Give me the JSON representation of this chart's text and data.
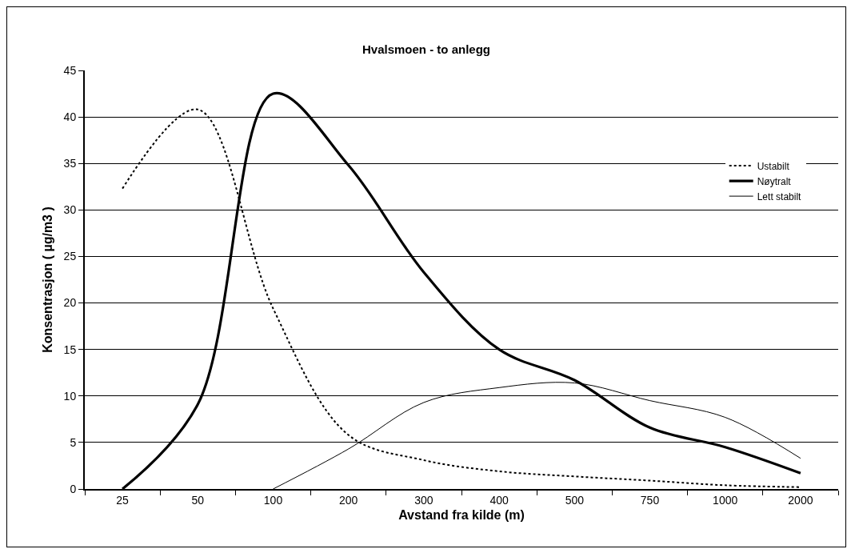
{
  "chart_data": {
    "type": "line",
    "title": "Hvalsmoen - to anlegg",
    "xlabel": "Avstand fra kilde (m)",
    "ylabel": "Konsentrasjon ( µg/m3 )",
    "categories": [
      "25",
      "50",
      "100",
      "200",
      "300",
      "400",
      "500",
      "750",
      "1000",
      "2000"
    ],
    "series": [
      {
        "name": "Ustabilt",
        "color": "#000000",
        "line_style": "dotted",
        "values": [
          32.3,
          40.8,
          19.4,
          5.8,
          3.1,
          1.9,
          1.35,
          0.9,
          0.4,
          0.2
        ]
      },
      {
        "name": "Nøytralt",
        "color": "#000000",
        "line_style": "solid",
        "values": [
          0,
          9.1,
          42.5,
          34.8,
          23.3,
          15.0,
          11.7,
          6.6,
          4.5,
          1.7
        ]
      },
      {
        "name": "Lett stabilt",
        "color": "#000000",
        "line_style": "solid",
        "values": [
          null,
          null,
          0,
          4.3,
          9.3,
          10.9,
          11.4,
          9.5,
          7.7,
          3.3
        ]
      }
    ],
    "ylim": [
      0,
      45
    ],
    "yticks": [
      0,
      5,
      10,
      15,
      20,
      25,
      30,
      35,
      40,
      45
    ],
    "grid": "y",
    "legend": "top right",
    "marker": "none"
  }
}
